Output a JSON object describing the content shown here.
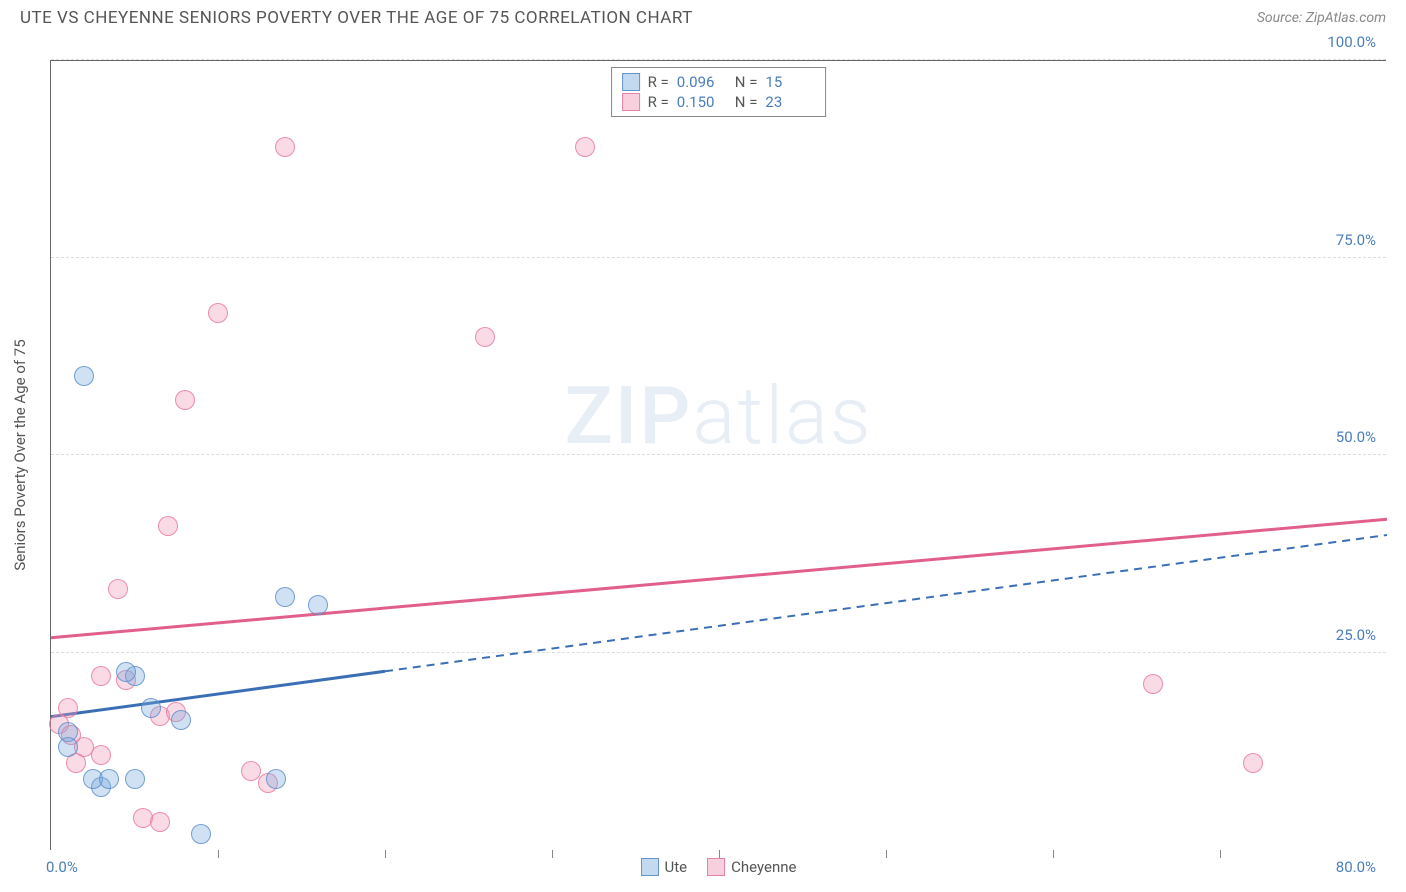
{
  "header": {
    "title": "UTE VS CHEYENNE SENIORS POVERTY OVER THE AGE OF 75 CORRELATION CHART",
    "source_label": "Source:",
    "source_name": "ZipAtlas.com"
  },
  "chart": {
    "type": "scatter",
    "ylabel": "Seniors Poverty Over the Age of 75",
    "xlim": [
      0,
      80
    ],
    "ylim": [
      0,
      100
    ],
    "x_axis_min_label": "0.0%",
    "x_axis_max_label": "80.0%",
    "yticks": [
      {
        "value": 25,
        "label": "25.0%"
      },
      {
        "value": 50,
        "label": "50.0%"
      },
      {
        "value": 75,
        "label": "75.0%"
      },
      {
        "value": 100,
        "label": "100.0%"
      }
    ],
    "xticks": [
      10,
      20,
      30,
      40,
      50,
      60,
      70
    ],
    "background_color": "#ffffff",
    "grid_color": "#dddddd",
    "axis_color": "#666666",
    "tick_label_color": "#4a7ebb",
    "watermark": {
      "zip": "ZIP",
      "atlas": "atlas"
    }
  },
  "series": {
    "ute": {
      "label": "Ute",
      "color_fill": "rgba(120,170,220,0.35)",
      "color_stroke": "rgba(90,140,200,0.8)",
      "trend_color": "#3b6fb5",
      "trend": {
        "x1": 0,
        "y1": 17,
        "x2": 80,
        "y2": 40,
        "solid_until_x": 20
      },
      "points": [
        {
          "x": 2,
          "y": 60
        },
        {
          "x": 5,
          "y": 22
        },
        {
          "x": 6,
          "y": 18
        },
        {
          "x": 14,
          "y": 32
        },
        {
          "x": 16,
          "y": 31
        },
        {
          "x": 9,
          "y": 2
        },
        {
          "x": 3,
          "y": 8
        },
        {
          "x": 1,
          "y": 15
        },
        {
          "x": 1,
          "y": 13
        },
        {
          "x": 2.5,
          "y": 9
        },
        {
          "x": 3.5,
          "y": 9
        },
        {
          "x": 5,
          "y": 9
        },
        {
          "x": 7.8,
          "y": 16.5
        },
        {
          "x": 4.5,
          "y": 22.5
        },
        {
          "x": 13.5,
          "y": 9
        }
      ]
    },
    "cheyenne": {
      "label": "Cheyenne",
      "color_fill": "rgba(240,150,180,0.35)",
      "color_stroke": "rgba(230,120,160,0.8)",
      "trend_color": "#e15f8a",
      "trend": {
        "x1": 0,
        "y1": 27,
        "x2": 80,
        "y2": 42,
        "solid_until_x": 80
      },
      "points": [
        {
          "x": 14,
          "y": 89
        },
        {
          "x": 32,
          "y": 89
        },
        {
          "x": 10,
          "y": 68
        },
        {
          "x": 26,
          "y": 65
        },
        {
          "x": 8,
          "y": 57
        },
        {
          "x": 7,
          "y": 41
        },
        {
          "x": 4,
          "y": 33
        },
        {
          "x": 3,
          "y": 22
        },
        {
          "x": 4.5,
          "y": 21.5
        },
        {
          "x": 6.5,
          "y": 17
        },
        {
          "x": 7.5,
          "y": 17.5
        },
        {
          "x": 1,
          "y": 18
        },
        {
          "x": 0.5,
          "y": 16
        },
        {
          "x": 1.2,
          "y": 14.5
        },
        {
          "x": 2,
          "y": 13
        },
        {
          "x": 3,
          "y": 12
        },
        {
          "x": 1.5,
          "y": 11
        },
        {
          "x": 5.5,
          "y": 4
        },
        {
          "x": 6.5,
          "y": 3.5
        },
        {
          "x": 12,
          "y": 10
        },
        {
          "x": 13,
          "y": 8.5
        },
        {
          "x": 66,
          "y": 21
        },
        {
          "x": 72,
          "y": 11
        }
      ]
    }
  },
  "stats_legend": {
    "rows": [
      {
        "series": "ute",
        "r_label": "R =",
        "r_value": "0.096",
        "n_label": "N =",
        "n_value": "15"
      },
      {
        "series": "cheyenne",
        "r_label": "R =",
        "r_value": "0.150",
        "n_label": "N =",
        "n_value": "23"
      }
    ]
  }
}
